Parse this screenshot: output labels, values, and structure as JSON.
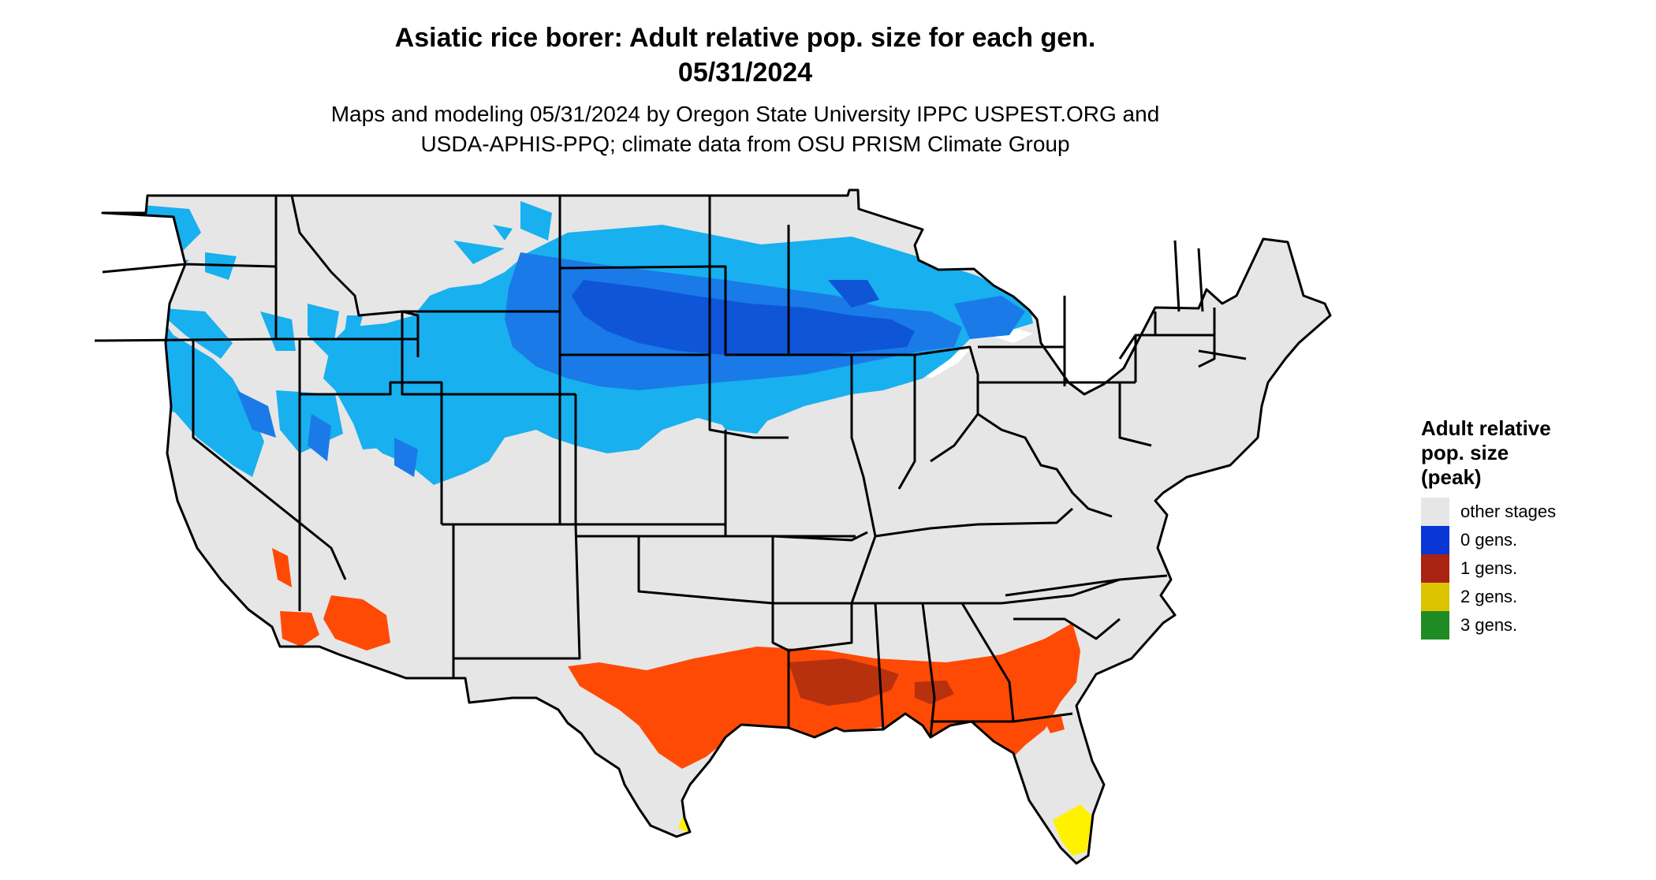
{
  "title": {
    "line1": "Asiatic rice borer: Adult relative pop. size for each gen.",
    "line2": "05/31/2024"
  },
  "subtitle": {
    "line1": "Maps and modeling 05/31/2024 by Oregon State University IPPC USPEST.ORG and",
    "line2": "USDA-APHIS-PPQ; climate data from OSU PRISM Climate Group"
  },
  "legend": {
    "title_line1": "Adult relative",
    "title_line2": "pop. size",
    "title_line3": "(peak)",
    "items": [
      {
        "label": "other stages",
        "color": "#e6e6e6"
      },
      {
        "label": "0 gens.",
        "color": "#0a36d6"
      },
      {
        "label": "1 gens.",
        "color": "#ab2312"
      },
      {
        "label": "2 gens.",
        "color": "#dcc400"
      },
      {
        "label": "3 gens.",
        "color": "#1f8b25"
      }
    ]
  },
  "colors": {
    "land": "#e6e6e6",
    "light_blue": "#18b0ef",
    "mid_blue": "#1a7ae8",
    "dark_blue": "#0f55d8",
    "orange_red": "#ff4a05",
    "dark_red": "#b8310f",
    "yellow": "#fff200",
    "border": "#000000"
  }
}
